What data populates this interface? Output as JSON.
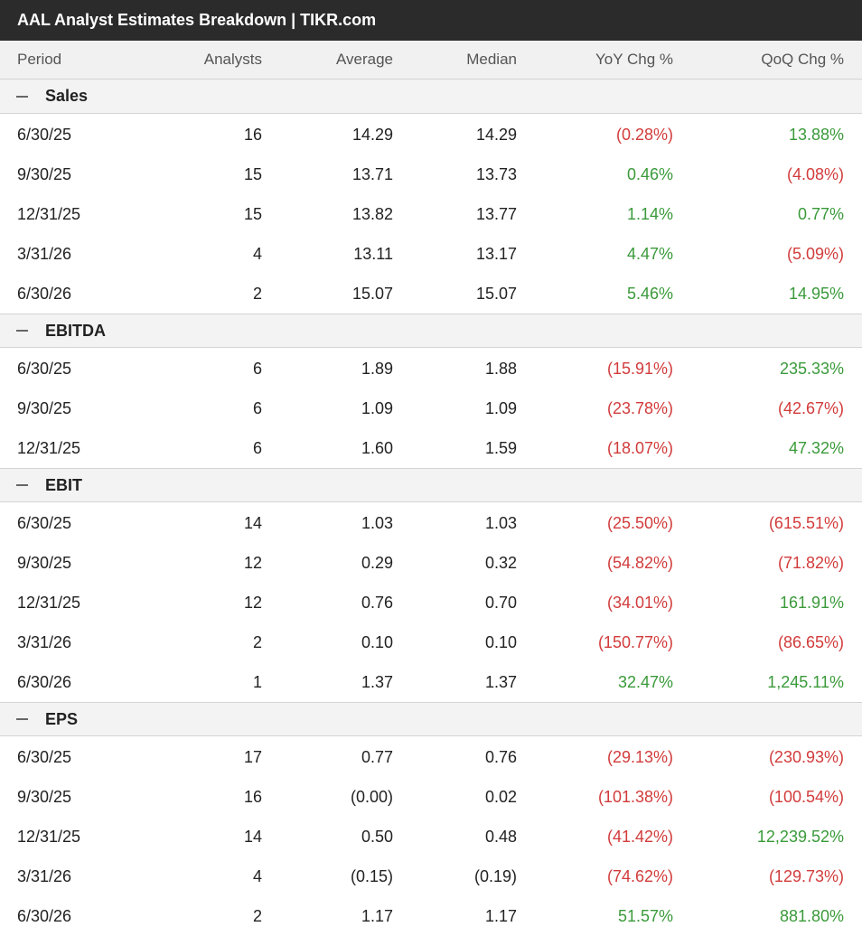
{
  "title": "AAL Analyst Estimates Breakdown | TIKR.com",
  "columns": {
    "period": "Period",
    "analysts": "Analysts",
    "average": "Average",
    "median": "Median",
    "yoy": "YoY Chg %",
    "qoq": "QoQ Chg %"
  },
  "colors": {
    "positive": "#3a9a3a",
    "negative": "#d23b3b",
    "titlebar": "#2b2b2b"
  },
  "icon": "collapse-minus-icon",
  "sections": [
    {
      "name": "Sales",
      "rows": [
        {
          "period": "6/30/25",
          "analysts": "16",
          "average": "14.29",
          "median": "14.29",
          "yoy": "(0.28%)",
          "qoq": "13.88%"
        },
        {
          "period": "9/30/25",
          "analysts": "15",
          "average": "13.71",
          "median": "13.73",
          "yoy": "0.46%",
          "qoq": "(4.08%)"
        },
        {
          "period": "12/31/25",
          "analysts": "15",
          "average": "13.82",
          "median": "13.77",
          "yoy": "1.14%",
          "qoq": "0.77%"
        },
        {
          "period": "3/31/26",
          "analysts": "4",
          "average": "13.11",
          "median": "13.17",
          "yoy": "4.47%",
          "qoq": "(5.09%)"
        },
        {
          "period": "6/30/26",
          "analysts": "2",
          "average": "15.07",
          "median": "15.07",
          "yoy": "5.46%",
          "qoq": "14.95%"
        }
      ]
    },
    {
      "name": "EBITDA",
      "rows": [
        {
          "period": "6/30/25",
          "analysts": "6",
          "average": "1.89",
          "median": "1.88",
          "yoy": "(15.91%)",
          "qoq": "235.33%"
        },
        {
          "period": "9/30/25",
          "analysts": "6",
          "average": "1.09",
          "median": "1.09",
          "yoy": "(23.78%)",
          "qoq": "(42.67%)"
        },
        {
          "period": "12/31/25",
          "analysts": "6",
          "average": "1.60",
          "median": "1.59",
          "yoy": "(18.07%)",
          "qoq": "47.32%"
        }
      ]
    },
    {
      "name": "EBIT",
      "rows": [
        {
          "period": "6/30/25",
          "analysts": "14",
          "average": "1.03",
          "median": "1.03",
          "yoy": "(25.50%)",
          "qoq": "(615.51%)"
        },
        {
          "period": "9/30/25",
          "analysts": "12",
          "average": "0.29",
          "median": "0.32",
          "yoy": "(54.82%)",
          "qoq": "(71.82%)"
        },
        {
          "period": "12/31/25",
          "analysts": "12",
          "average": "0.76",
          "median": "0.70",
          "yoy": "(34.01%)",
          "qoq": "161.91%"
        },
        {
          "period": "3/31/26",
          "analysts": "2",
          "average": "0.10",
          "median": "0.10",
          "yoy": "(150.77%)",
          "qoq": "(86.65%)"
        },
        {
          "period": "6/30/26",
          "analysts": "1",
          "average": "1.37",
          "median": "1.37",
          "yoy": "32.47%",
          "qoq": "1,245.11%"
        }
      ]
    },
    {
      "name": "EPS",
      "rows": [
        {
          "period": "6/30/25",
          "analysts": "17",
          "average": "0.77",
          "median": "0.76",
          "yoy": "(29.13%)",
          "qoq": "(230.93%)"
        },
        {
          "period": "9/30/25",
          "analysts": "16",
          "average": "(0.00)",
          "median": "0.02",
          "yoy": "(101.38%)",
          "qoq": "(100.54%)"
        },
        {
          "period": "12/31/25",
          "analysts": "14",
          "average": "0.50",
          "median": "0.48",
          "yoy": "(41.42%)",
          "qoq": "12,239.52%"
        },
        {
          "period": "3/31/26",
          "analysts": "4",
          "average": "(0.15)",
          "median": "(0.19)",
          "yoy": "(74.62%)",
          "qoq": "(129.73%)"
        },
        {
          "period": "6/30/26",
          "analysts": "2",
          "average": "1.17",
          "median": "1.17",
          "yoy": "51.57%",
          "qoq": "881.80%"
        }
      ]
    }
  ]
}
